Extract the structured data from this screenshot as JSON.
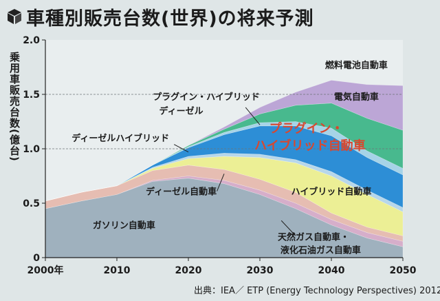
{
  "title": "車種別販売台数(世界)の将来予測",
  "icon": "cube-icon",
  "source": "出典：IEA／ ETP (Energy Technology Perspectives) 2012",
  "chart_data": {
    "type": "area",
    "stacked": true,
    "title": "車種別販売台数(世界)の将来予測",
    "ylabel": "乗用車販売台数(億台)",
    "xlabel": "",
    "ylim": [
      0,
      2.0
    ],
    "xlim": [
      2000,
      2050
    ],
    "xtick_labels": [
      "2000年",
      "2010",
      "2020",
      "2030",
      "2040",
      "2050"
    ],
    "ytick_labels": [
      "0",
      "0.5",
      "1.0",
      "1.5",
      "2.0"
    ],
    "gridlines_y": [
      1.0,
      1.5
    ],
    "x": [
      2000,
      2005,
      2010,
      2015,
      2020,
      2025,
      2030,
      2035,
      2040,
      2045,
      2050
    ],
    "series": [
      {
        "name": "ガソリン自動車",
        "color": "#9fb1be",
        "values": [
          0.45,
          0.52,
          0.58,
          0.7,
          0.73,
          0.68,
          0.58,
          0.45,
          0.3,
          0.18,
          0.1
        ]
      },
      {
        "name": "天然ガス自動車・液化石油ガス自動車",
        "color": "#d6aeca",
        "values": [
          0.0,
          0.0,
          0.0,
          0.01,
          0.02,
          0.03,
          0.04,
          0.05,
          0.05,
          0.05,
          0.05
        ]
      },
      {
        "name": "ディーゼル自動車",
        "color": "#e6bdb2",
        "values": [
          0.07,
          0.08,
          0.08,
          0.09,
          0.1,
          0.1,
          0.1,
          0.1,
          0.06,
          0.05,
          0.05
        ]
      },
      {
        "name": "ハイブリッド自動車",
        "color": "#ecef95",
        "values": [
          0.0,
          0.0,
          0.0,
          0.02,
          0.06,
          0.12,
          0.2,
          0.27,
          0.34,
          0.3,
          0.22
        ]
      },
      {
        "name": "ディーゼルハイブリッド",
        "color": "#b7d7ea",
        "values": [
          0.0,
          0.0,
          0.0,
          0.01,
          0.02,
          0.03,
          0.03,
          0.03,
          0.04,
          0.04,
          0.04
        ]
      },
      {
        "name": "プラグイン・ハイブリッド自動車",
        "color": "#2d8ed6",
        "values": [
          0.0,
          0.0,
          0.0,
          0.02,
          0.08,
          0.17,
          0.26,
          0.31,
          0.33,
          0.3,
          0.3
        ]
      },
      {
        "name": "プラグイン・ハイブリッドディーゼル",
        "color": "#a6d3e7",
        "values": [
          0.0,
          0.0,
          0.0,
          0.0,
          0.01,
          0.02,
          0.03,
          0.04,
          0.07,
          0.06,
          0.06
        ]
      },
      {
        "name": "電気自動車",
        "color": "#48b98e",
        "values": [
          0.0,
          0.0,
          0.0,
          0.0,
          0.01,
          0.03,
          0.08,
          0.15,
          0.23,
          0.3,
          0.35
        ]
      },
      {
        "name": "燃料電池自動車",
        "color": "#bca6d6",
        "values": [
          0.0,
          0.0,
          0.0,
          0.0,
          0.0,
          0.02,
          0.06,
          0.12,
          0.21,
          0.31,
          0.41
        ]
      }
    ],
    "annotations": [
      {
        "text": "燃料電池自動車",
        "series": 8,
        "x": 2043.5,
        "y": 1.74,
        "color": "#1b1b1b",
        "size": 13
      },
      {
        "text": "電気自動車",
        "series": 7,
        "x": 2043.5,
        "y": 1.45,
        "color": "#1b1b1b",
        "size": 13
      },
      {
        "text": "プラグイン・",
        "series": 5,
        "x": 2036.5,
        "y": 1.15,
        "color": "#d8482f",
        "size": 18
      },
      {
        "text": "ハイブリッド自動車",
        "series": 5,
        "x": 2037,
        "y": 0.99,
        "color": "#d8482f",
        "size": 18
      },
      {
        "text": "ハイブリッド自動車",
        "series": 3,
        "x": 2040,
        "y": 0.58,
        "color": "#1b1b1b",
        "size": 13
      },
      {
        "text": "天然ガス自動車・",
        "series": 1,
        "x": 2037.5,
        "y": 0.16,
        "color": "#1b1b1b",
        "size": 13
      },
      {
        "text": "液化石油ガス自動車",
        "series": 1,
        "x": 2038.5,
        "y": 0.04,
        "color": "#1b1b1b",
        "size": 13
      },
      {
        "text": "プラグイン・ハイブリッド",
        "series": 6,
        "x": 2022.5,
        "y": 1.45,
        "color": "#1b1b1b",
        "size": 13
      },
      {
        "text": "ディーゼル",
        "series": 6,
        "x": 2019,
        "y": 1.32,
        "color": "#1b1b1b",
        "size": 13
      },
      {
        "text": "ディーゼルハイブリッド",
        "series": 4,
        "x": 2010.5,
        "y": 1.07,
        "color": "#1b1b1b",
        "size": 13
      },
      {
        "text": "ディーゼル自動車",
        "series": 2,
        "x": 2019,
        "y": 0.58,
        "color": "#1b1b1b",
        "size": 13
      },
      {
        "text": "ガソリン自動車",
        "series": 0,
        "x": 2011,
        "y": 0.27,
        "color": "#1b1b1b",
        "size": 13
      }
    ],
    "leaders": [
      {
        "from": [
          2028,
          1.38
        ],
        "to": [
          2030,
          1.22
        ]
      },
      {
        "from": [
          2018,
          1.04
        ],
        "to": [
          2020,
          0.97
        ]
      },
      {
        "from": [
          2024,
          0.61
        ],
        "to": [
          2025,
          0.77
        ]
      },
      {
        "from": [
          2035,
          0.2
        ],
        "to": [
          2033,
          0.34
        ]
      }
    ]
  }
}
